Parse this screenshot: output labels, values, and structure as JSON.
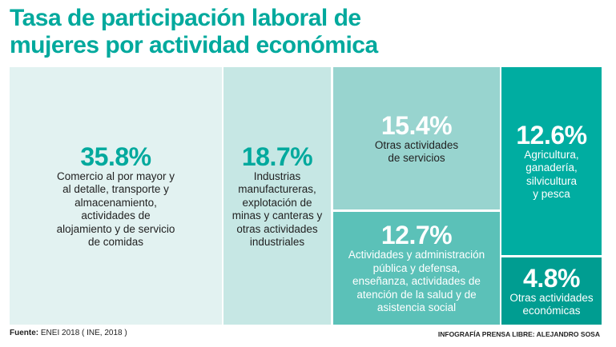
{
  "title_line1": "Tasa de participación laboral de",
  "title_line2": "mujeres por actividad económica",
  "chart_data": {
    "type": "treemap",
    "unit": "%",
    "items": [
      {
        "value": 35.8,
        "label_pct": "35.8%",
        "label": "Comercio al por mayor y\nal detalle, transporte y\nalmacenamiento,\nactividades de\nalojamiento y de servicio\nde comidas",
        "color": "#e2f2f1"
      },
      {
        "value": 18.7,
        "label_pct": "18.7%",
        "label": "Industrias\nmanufactureras,\nexplotación de\nminas y canteras y\notras actividades\nindustriales",
        "color": "#c6e7e4"
      },
      {
        "value": 15.4,
        "label_pct": "15.4%",
        "label": "Otras actividades\nde servicios",
        "color": "#98d4cf"
      },
      {
        "value": 12.7,
        "label_pct": "12.7%",
        "label": "Actividades y administración\npública y defensa,\nenseñanza, actividades de\natención de la salud y de\nasistencia social",
        "color": "#5bc1b8"
      },
      {
        "value": 12.6,
        "label_pct": "12.6%",
        "label": "Agricultura,\nganadería,\nsilvicultura\ny pesca",
        "color": "#00ada1"
      },
      {
        "value": 4.8,
        "label_pct": "4.8%",
        "label": "Otras actividades\neconómicas",
        "color": "#009d91"
      }
    ]
  },
  "footer": {
    "source_label": "Fuente:",
    "source_text": " ENEI 2018 ( INE, 2018 )",
    "credit": "INFOGRAFÍA PRENSA LIBRE: ALEJANDRO SOSA"
  }
}
